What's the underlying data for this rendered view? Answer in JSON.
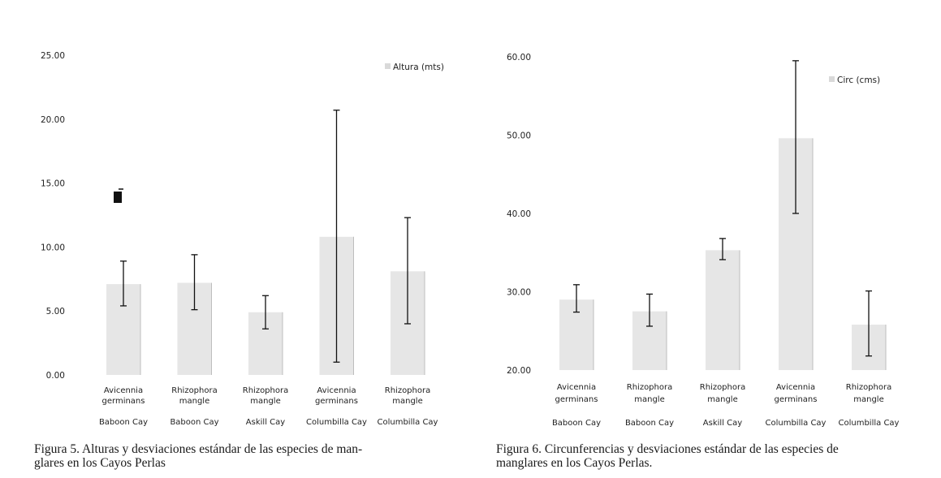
{
  "chart_data": [
    {
      "type": "bar",
      "title": "",
      "xlabel": "",
      "ylabel": "",
      "ylim": [
        0,
        25
      ],
      "yticks": [
        "0.00",
        "5.00",
        "10.00",
        "15.00",
        "20.00",
        "25.00"
      ],
      "categories": [
        {
          "species_line1": "Avicennia",
          "species_line2": "germinans",
          "site": "Baboon Cay"
        },
        {
          "species_line1": "Rhizophora",
          "species_line2": "mangle",
          "site": "Baboon Cay"
        },
        {
          "species_line1": "Rhizophora",
          "species_line2": "mangle",
          "site": "Askill Cay"
        },
        {
          "species_line1": "Avicennia",
          "species_line2": "germinans",
          "site": "Columbilla Cay"
        },
        {
          "species_line1": "Rhizophora",
          "species_line2": "mangle",
          "site": "Columbilla Cay"
        }
      ],
      "series": [
        {
          "name": "Altura (mts)",
          "values": [
            7.1,
            7.2,
            4.9,
            10.8,
            8.1
          ],
          "error_low": [
            5.4,
            5.1,
            3.6,
            1.0,
            4.0
          ],
          "error_high": [
            8.9,
            9.4,
            6.2,
            20.7,
            12.3
          ]
        }
      ],
      "legend": "top-right",
      "grid": false,
      "bar_color": "#d9d9d9",
      "error_color": "#111111",
      "caption": "Figura 5. Alturas y desviaciones estándar de las especies de manglares en los Cayos Perlas",
      "caption_line1": "Figura 5. Alturas y desviaciones estándar de las especies de man-",
      "caption_line2": "glares en los Cayos Perlas"
    },
    {
      "type": "bar",
      "title": "",
      "xlabel": "",
      "ylabel": "",
      "ylim": [
        20,
        60
      ],
      "yticks": [
        "20.00",
        "30.00",
        "40.00",
        "50.00",
        "60.00"
      ],
      "categories": [
        {
          "species_line1": "Avicennia",
          "species_line2": "germinans",
          "site": "Baboon Cay"
        },
        {
          "species_line1": "Rhizophora",
          "species_line2": "mangle",
          "site": "Baboon Cay"
        },
        {
          "species_line1": "Rhizophora",
          "species_line2": "mangle",
          "site": "Askill Cay"
        },
        {
          "species_line1": "Avicennia",
          "species_line2": "germinans",
          "site": "Columbilla Cay"
        },
        {
          "species_line1": "Rhizophora",
          "species_line2": "mangle",
          "site": "Columbilla Cay"
        }
      ],
      "series": [
        {
          "name": "Circ (cms)",
          "values": [
            29.0,
            27.5,
            35.3,
            49.6,
            25.8
          ],
          "error_low": [
            27.4,
            25.6,
            34.1,
            40.0,
            21.8
          ],
          "error_high": [
            30.9,
            29.7,
            36.8,
            59.5,
            30.1
          ]
        }
      ],
      "legend": "top-right",
      "grid": false,
      "bar_color": "#d9d9d9",
      "error_color": "#111111",
      "caption": "Figura 6. Circunferencias y desviaciones estándar de las especies de manglares en los Cayos Perlas.",
      "caption_line1": "Figura 6. Circunferencias y desviaciones estándar de las especies de",
      "caption_line2": "manglares en los Cayos Perlas."
    }
  ]
}
